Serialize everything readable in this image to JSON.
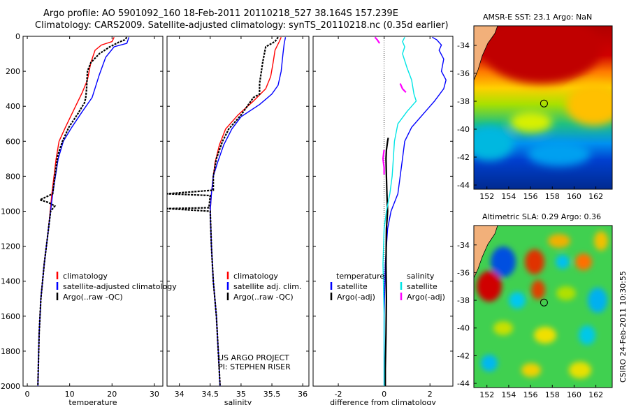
{
  "header": {
    "line1": "Argo profile: AO 5901092_160 18-Feb-2011 20110218_527 38.164S 157.239E",
    "line2": "Climatology: CARS2009. Satellite-adjusted climatology: synTS_20110218.nc (0.35d earlier)"
  },
  "credit": {
    "line1": "US ARGO PROJECT",
    "line2": "PI: STEPHEN RISER"
  },
  "side_label": "CSIRO 24-Feb-2011 10:30:55",
  "colors": {
    "climatology": "#ff0000",
    "satellite": "#0000ff",
    "argo": "#000000",
    "sat_salinity": "#00e5e5",
    "argo_adj_salinity": "#ff00ff"
  },
  "chart_data": [
    {
      "type": "line",
      "xlabel": "temperature",
      "xlim": [
        -1,
        32
      ],
      "xticks": [
        0,
        10,
        20,
        30
      ],
      "ylim": [
        2000,
        0
      ],
      "yticks": [
        0,
        200,
        400,
        600,
        800,
        1000,
        1200,
        1400,
        1600,
        1800,
        2000
      ],
      "legend": [
        "climatology",
        "satellite-adjusted climatology",
        "Argo(..raw -QC)"
      ],
      "series": [
        {
          "name": "climatology",
          "color": "#ff0000",
          "points": [
            [
              20.5,
              5
            ],
            [
              20,
              30
            ],
            [
              17.5,
              50
            ],
            [
              16,
              80
            ],
            [
              15,
              150
            ],
            [
              14.2,
              250
            ],
            [
              13,
              320
            ],
            [
              11,
              420
            ],
            [
              9,
              520
            ],
            [
              7.5,
              600
            ],
            [
              6.8,
              700
            ],
            [
              5.8,
              900
            ],
            [
              5,
              1100
            ],
            [
              4,
              1300
            ],
            [
              3.2,
              1500
            ],
            [
              2.8,
              1700
            ],
            [
              2.6,
              1900
            ],
            [
              2.5,
              2000
            ]
          ]
        },
        {
          "name": "satellite-adjusted climatology",
          "color": "#0000ff",
          "points": [
            [
              24,
              5
            ],
            [
              23.5,
              40
            ],
            [
              20.5,
              60
            ],
            [
              18.5,
              120
            ],
            [
              17,
              220
            ],
            [
              15.3,
              350
            ],
            [
              13,
              430
            ],
            [
              10.5,
              520
            ],
            [
              8.5,
              600
            ],
            [
              7.3,
              700
            ],
            [
              6,
              900
            ],
            [
              5,
              1100
            ],
            [
              4,
              1300
            ],
            [
              3.2,
              1500
            ],
            [
              2.8,
              1700
            ],
            [
              2.6,
              1900
            ],
            [
              2.5,
              2000
            ]
          ]
        },
        {
          "name": "Argo(..raw -QC)",
          "color": "#000000",
          "points": [
            [
              23.5,
              5
            ],
            [
              23,
              20
            ],
            [
              21.5,
              35
            ],
            [
              19.5,
              60
            ],
            [
              17,
              100
            ],
            [
              15,
              150
            ],
            [
              14.2,
              200
            ],
            [
              14,
              300
            ],
            [
              13.8,
              350
            ],
            [
              13.5,
              380
            ],
            [
              12,
              440
            ],
            [
              9.8,
              520
            ],
            [
              8.3,
              600
            ],
            [
              7.2,
              680
            ],
            [
              6.5,
              800
            ],
            [
              6,
              900
            ],
            [
              3,
              935
            ],
            [
              5,
              950
            ],
            [
              6.5,
              970
            ],
            [
              5.5,
              1000
            ],
            [
              5,
              1100
            ],
            [
              4,
              1300
            ],
            [
              3.2,
              1500
            ],
            [
              2.8,
              1700
            ],
            [
              2.6,
              1900
            ],
            [
              2.5,
              2000
            ]
          ]
        }
      ]
    },
    {
      "type": "line",
      "xlabel": "salinity",
      "xlim": [
        33.8,
        36.1
      ],
      "xticks": [
        34,
        34.5,
        35,
        35.5,
        36
      ],
      "ylim": [
        2000,
        0
      ],
      "legend": [
        "climatology",
        "satellite adj. clim.",
        "Argo(..raw -QC)"
      ],
      "series": [
        {
          "name": "climatology",
          "color": "#ff0000",
          "points": [
            [
              35.65,
              5
            ],
            [
              35.62,
              30
            ],
            [
              35.55,
              80
            ],
            [
              35.52,
              150
            ],
            [
              35.48,
              230
            ],
            [
              35.4,
              300
            ],
            [
              35.2,
              370
            ],
            [
              34.95,
              450
            ],
            [
              34.75,
              530
            ],
            [
              34.65,
              620
            ],
            [
              34.58,
              720
            ],
            [
              34.55,
              800
            ],
            [
              34.52,
              900
            ],
            [
              34.5,
              1000
            ],
            [
              34.52,
              1200
            ],
            [
              34.55,
              1400
            ],
            [
              34.6,
              1600
            ],
            [
              34.63,
              1800
            ],
            [
              34.66,
              2000
            ]
          ]
        },
        {
          "name": "satellite adj. clim.",
          "color": "#0000ff",
          "points": [
            [
              35.72,
              5
            ],
            [
              35.7,
              40
            ],
            [
              35.68,
              100
            ],
            [
              35.65,
              200
            ],
            [
              35.6,
              280
            ],
            [
              35.5,
              330
            ],
            [
              35.3,
              390
            ],
            [
              35.0,
              460
            ],
            [
              34.85,
              530
            ],
            [
              34.72,
              620
            ],
            [
              34.62,
              720
            ],
            [
              34.55,
              800
            ],
            [
              34.52,
              900
            ],
            [
              34.5,
              1000
            ],
            [
              34.52,
              1200
            ],
            [
              34.55,
              1400
            ],
            [
              34.6,
              1600
            ],
            [
              34.63,
              1800
            ],
            [
              34.66,
              2000
            ]
          ]
        },
        {
          "name": "Argo(..raw -QC)",
          "color": "#000000",
          "points": [
            [
              35.6,
              5
            ],
            [
              35.55,
              30
            ],
            [
              35.4,
              60
            ],
            [
              35.35,
              150
            ],
            [
              35.33,
              200
            ],
            [
              35.3,
              270
            ],
            [
              35.3,
              330
            ],
            [
              35.2,
              350
            ],
            [
              35.0,
              450
            ],
            [
              34.8,
              530
            ],
            [
              34.7,
              600
            ],
            [
              34.6,
              700
            ],
            [
              34.55,
              800
            ],
            [
              34.55,
              880
            ],
            [
              33.8,
              900
            ],
            [
              34.5,
              910
            ],
            [
              34.48,
              980
            ],
            [
              33.8,
              985
            ],
            [
              34.5,
              1000
            ],
            [
              34.52,
              1200
            ],
            [
              34.55,
              1400
            ],
            [
              34.6,
              1600
            ],
            [
              34.63,
              1800
            ],
            [
              34.66,
              2000
            ]
          ]
        }
      ]
    },
    {
      "type": "line",
      "xlabel": "difference from climatology",
      "xlim": [
        -3.1,
        3.0
      ],
      "xticks": [
        -2,
        0,
        2
      ],
      "ylim": [
        2000,
        0
      ],
      "legend_temperature_title": "temperature",
      "legend_salinity_title": "salinity",
      "legend": [
        "satellite",
        "Argo(-adj)",
        "satellite",
        "Argo(-adj)"
      ],
      "series": [
        {
          "name": "satellite",
          "color": "#0000ff",
          "points": [
            [
              2.1,
              5
            ],
            [
              2.3,
              20
            ],
            [
              2.5,
              50
            ],
            [
              2.4,
              80
            ],
            [
              2.6,
              130
            ],
            [
              2.5,
              200
            ],
            [
              2.7,
              250
            ],
            [
              2.6,
              300
            ],
            [
              2.2,
              370
            ],
            [
              1.8,
              430
            ],
            [
              1.2,
              520
            ],
            [
              0.9,
              600
            ],
            [
              0.8,
              700
            ],
            [
              0.7,
              800
            ],
            [
              0.6,
              900
            ],
            [
              0.3,
              1000
            ],
            [
              0.15,
              1100
            ],
            [
              0.05,
              1300
            ],
            [
              0.0,
              1600
            ],
            [
              0.0,
              2000
            ]
          ]
        },
        {
          "name": "Argo(-adj)",
          "color": "#000000",
          "points": [
            [
              0.18,
              580
            ],
            [
              0.15,
              600
            ],
            [
              0.1,
              650
            ],
            [
              0.08,
              700
            ],
            [
              0.1,
              800
            ],
            [
              0.12,
              900
            ],
            [
              0.15,
              1000
            ],
            [
              0.1,
              1100
            ],
            [
              0.08,
              1300
            ],
            [
              0.1,
              1500
            ],
            [
              0.08,
              1700
            ],
            [
              0.05,
              1900
            ],
            [
              0.05,
              2000
            ]
          ]
        },
        {
          "name": "satellite",
          "color": "#00e5e5",
          "points": [
            [
              0.9,
              5
            ],
            [
              0.8,
              30
            ],
            [
              0.9,
              60
            ],
            [
              0.8,
              100
            ],
            [
              1.0,
              180
            ],
            [
              1.2,
              250
            ],
            [
              1.3,
              330
            ],
            [
              1.4,
              370
            ],
            [
              1.0,
              430
            ],
            [
              0.6,
              500
            ],
            [
              0.45,
              600
            ],
            [
              0.4,
              700
            ],
            [
              0.35,
              800
            ],
            [
              0.25,
              900
            ],
            [
              0.1,
              1000
            ],
            [
              0.0,
              1100
            ],
            [
              -0.05,
              1300
            ],
            [
              0.0,
              1600
            ],
            [
              0.0,
              2000
            ]
          ]
        },
        {
          "name": "Argo(-adj)",
          "color": "#ff00ff",
          "points": [
            [
              -0.4,
              5
            ],
            [
              -0.3,
              20
            ],
            [
              -0.2,
              40
            ]
          ]
        },
        {
          "name": "Argo(-adj) segment 2",
          "color": "#ff00ff",
          "points": [
            [
              0.7,
              270
            ],
            [
              0.8,
              300
            ],
            [
              0.95,
              320
            ]
          ]
        },
        {
          "name": "Argo(-adj) segment 3",
          "color": "#ff00ff",
          "points": [
            [
              0.0,
              650
            ],
            [
              -0.05,
              700
            ],
            [
              0.0,
              750
            ],
            [
              0.0,
              790
            ]
          ]
        }
      ]
    }
  ],
  "maps": [
    {
      "title": "AMSR-E SST: 23.1 Argo: NaN",
      "xticks": [
        152,
        154,
        156,
        158,
        160,
        162
      ],
      "yticks": [
        -34,
        -36,
        -38,
        -40,
        -42,
        -44
      ],
      "xlim": [
        150.8,
        163.5
      ],
      "ylim": [
        -44.3,
        -32.6
      ],
      "argo_lon": 157.24,
      "argo_lat": -38.16
    },
    {
      "title": "Altimetric SLA: 0.29 Argo: 0.36",
      "xticks": [
        152,
        154,
        156,
        158,
        160,
        162
      ],
      "yticks": [
        -34,
        -36,
        -38,
        -40,
        -42,
        -44
      ],
      "xlim": [
        150.8,
        163.5
      ],
      "ylim": [
        -44.3,
        -32.6
      ],
      "argo_lon": 157.24,
      "argo_lat": -38.16
    }
  ]
}
